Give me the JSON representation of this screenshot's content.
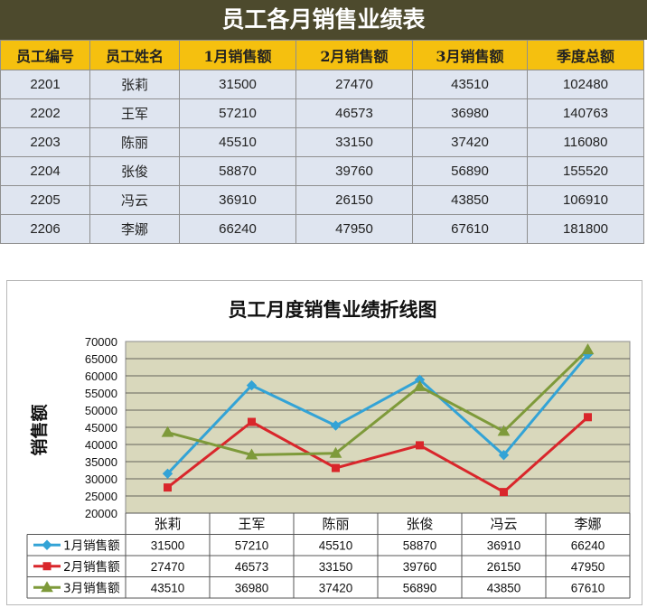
{
  "header": {
    "title": "员工各月销售业绩表"
  },
  "table": {
    "columns": [
      "员工编号",
      "员工姓名",
      "1月销售额",
      "2月销售额",
      "3月销售额",
      "季度总额"
    ],
    "rows": [
      [
        "2201",
        "张莉",
        "31500",
        "27470",
        "43510",
        "102480"
      ],
      [
        "2202",
        "王军",
        "57210",
        "46573",
        "36980",
        "140763"
      ],
      [
        "2203",
        "陈丽",
        "45510",
        "33150",
        "37420",
        "116080"
      ],
      [
        "2204",
        "张俊",
        "58870",
        "39760",
        "56890",
        "155520"
      ],
      [
        "2205",
        "冯云",
        "36910",
        "26150",
        "43850",
        "106910"
      ],
      [
        "2206",
        "李娜",
        "66240",
        "47950",
        "67610",
        "181800"
      ]
    ]
  },
  "chart_data": {
    "type": "line",
    "title": "员工月度销售业绩折线图",
    "xlabel": "",
    "ylabel": "销售额",
    "ylim": [
      20000,
      70000
    ],
    "yticks": [
      20000,
      25000,
      30000,
      35000,
      40000,
      45000,
      50000,
      55000,
      60000,
      65000,
      70000
    ],
    "grid": true,
    "legend": "data-table-left",
    "plot_background": "#d9d8bc",
    "categories": [
      "张莉",
      "王军",
      "陈丽",
      "张俊",
      "冯云",
      "李娜"
    ],
    "series": [
      {
        "name": "1月销售额",
        "color": "#33a3d6",
        "marker": "diamond",
        "values": [
          31500,
          57210,
          45510,
          58870,
          36910,
          66240
        ]
      },
      {
        "name": "2月销售额",
        "color": "#d9262b",
        "marker": "square",
        "values": [
          27470,
          46573,
          33150,
          39760,
          26150,
          47950
        ]
      },
      {
        "name": "3月销售额",
        "color": "#7e9a3a",
        "marker": "triangle",
        "values": [
          43510,
          36980,
          37420,
          56890,
          43850,
          67610
        ]
      }
    ]
  }
}
